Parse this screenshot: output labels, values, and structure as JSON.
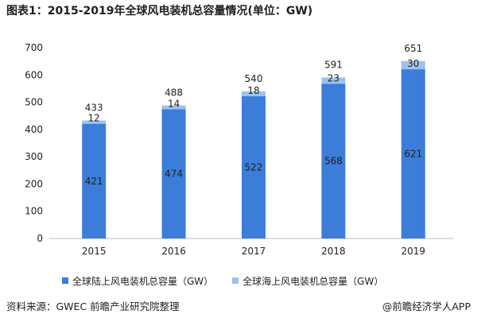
{
  "header": {
    "title": "图表1：2015-2019年全球风电装机总容量情况(单位：GW)"
  },
  "colors": {
    "onshore": "#3b7dd8",
    "offshore": "#9cc3ee",
    "axis": "#bfbfbf",
    "text": "#222222"
  },
  "chart_data": {
    "type": "bar",
    "stacked": true,
    "title": "图表1：2015-2019年全球风电装机总容量情况(单位：GW)",
    "categories": [
      "2015",
      "2016",
      "2017",
      "2018",
      "2019"
    ],
    "series": [
      {
        "name": "全球陆上风电装机总容量（GW）",
        "values": [
          421,
          474,
          522,
          568,
          621
        ]
      },
      {
        "name": "全球海上风电装机总容量（GW）",
        "values": [
          12,
          14,
          18,
          23,
          30
        ]
      }
    ],
    "totals": [
      433,
      488,
      540,
      591,
      651
    ],
    "ylim": [
      0,
      700
    ],
    "yticks": [
      0,
      100,
      200,
      300,
      400,
      500,
      600,
      700
    ],
    "xlabel": "",
    "ylabel": "",
    "grid": false,
    "legend": "bottom"
  },
  "footer": {
    "source": "资料来源：GWEC 前瞻产业研究院整理",
    "brand": "@前瞻经济学人APP"
  }
}
